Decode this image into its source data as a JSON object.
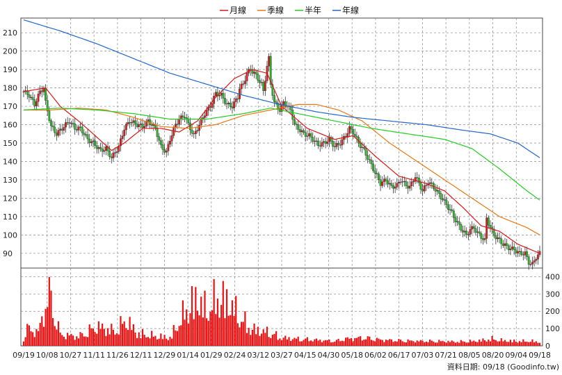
{
  "legend": [
    {
      "label": "月線",
      "color": "#d91616"
    },
    {
      "label": "季線",
      "color": "#ee7711"
    },
    {
      "label": "半年",
      "color": "#22cc22"
    },
    {
      "label": "年線",
      "color": "#2266cc"
    }
  ],
  "footer": {
    "text": "資料日期: 09/18  (Goodinfo.tw)"
  },
  "colors": {
    "up": "#dd1c1c",
    "down": "#22bb22",
    "volume": "#ee1111",
    "grid": "#888888"
  },
  "chart_data": [
    {
      "type": "candlestick",
      "name": "price",
      "ylim": [
        82,
        218
      ],
      "yticks": [
        90,
        100,
        110,
        120,
        130,
        140,
        150,
        160,
        170,
        180,
        190,
        200,
        210
      ],
      "x_labels": [
        "09/19",
        "10/08",
        "10/27",
        "11/11",
        "11/26",
        "12/11",
        "12/29",
        "01/14",
        "01/29",
        "02/24",
        "03/12",
        "03/27",
        "04/15",
        "04/30",
        "05/18",
        "06/02",
        "06/17",
        "07/03",
        "07/21",
        "08/05",
        "08/20",
        "09/04",
        "09/18"
      ],
      "grid": true,
      "close_points": [
        [
          0,
          178
        ],
        [
          3,
          176
        ],
        [
          6,
          171
        ],
        [
          9,
          178
        ],
        [
          11,
          180
        ],
        [
          12,
          172
        ],
        [
          15,
          159
        ],
        [
          18,
          155
        ],
        [
          21,
          158
        ],
        [
          25,
          162
        ],
        [
          28,
          158
        ],
        [
          31,
          158
        ],
        [
          35,
          152
        ],
        [
          38,
          150
        ],
        [
          42,
          146
        ],
        [
          45,
          147
        ],
        [
          48,
          142
        ],
        [
          52,
          148
        ],
        [
          55,
          158
        ],
        [
          58,
          162
        ],
        [
          62,
          160
        ],
        [
          65,
          159
        ],
        [
          68,
          162
        ],
        [
          70,
          160
        ],
        [
          72,
          158
        ],
        [
          75,
          148
        ],
        [
          78,
          145
        ],
        [
          80,
          152
        ],
        [
          83,
          160
        ],
        [
          85,
          163
        ],
        [
          88,
          165
        ],
        [
          90,
          160
        ],
        [
          93,
          154
        ],
        [
          96,
          160
        ],
        [
          99,
          166
        ],
        [
          102,
          170
        ],
        [
          105,
          177
        ],
        [
          108,
          176
        ],
        [
          111,
          171
        ],
        [
          114,
          170
        ],
        [
          117,
          175
        ],
        [
          118,
          180
        ],
        [
          120,
          182
        ],
        [
          122,
          188
        ],
        [
          124,
          190
        ],
        [
          126,
          188
        ],
        [
          128,
          185
        ],
        [
          130,
          182
        ],
        [
          131,
          178
        ],
        [
          133,
          192
        ],
        [
          134,
          196
        ],
        [
          135,
          182
        ],
        [
          137,
          172
        ],
        [
          140,
          168
        ],
        [
          142,
          172
        ],
        [
          144,
          170
        ],
        [
          146,
          168
        ],
        [
          148,
          160
        ],
        [
          150,
          158
        ],
        [
          153,
          155
        ],
        [
          156,
          154
        ],
        [
          158,
          152
        ],
        [
          161,
          149
        ],
        [
          164,
          150
        ],
        [
          167,
          152
        ],
        [
          170,
          148
        ],
        [
          173,
          150
        ],
        [
          176,
          154
        ],
        [
          178,
          158
        ],
        [
          180,
          156
        ],
        [
          183,
          150
        ],
        [
          186,
          146
        ],
        [
          189,
          140
        ],
        [
          192,
          134
        ],
        [
          195,
          128
        ],
        [
          198,
          130
        ],
        [
          201,
          126
        ],
        [
          204,
          127
        ],
        [
          206,
          130
        ],
        [
          209,
          127
        ],
        [
          211,
          126
        ],
        [
          214,
          132
        ],
        [
          216,
          128
        ],
        [
          218,
          124
        ],
        [
          221,
          129
        ],
        [
          224,
          126
        ],
        [
          227,
          122
        ],
        [
          230,
          118
        ],
        [
          232,
          115
        ],
        [
          234,
          112
        ],
        [
          236,
          108
        ],
        [
          238,
          105
        ],
        [
          240,
          102
        ],
        [
          242,
          100
        ],
        [
          244,
          103
        ],
        [
          246,
          104
        ],
        [
          248,
          101
        ],
        [
          250,
          99
        ],
        [
          252,
          97
        ],
        [
          253,
          109
        ],
        [
          255,
          104
        ],
        [
          257,
          100
        ],
        [
          259,
          98
        ],
        [
          262,
          95
        ],
        [
          265,
          93
        ],
        [
          268,
          92
        ],
        [
          271,
          90
        ],
        [
          274,
          90
        ],
        [
          276,
          85
        ],
        [
          278,
          84
        ],
        [
          280,
          88
        ],
        [
          282,
          90
        ]
      ],
      "series": [
        {
          "name": "月線",
          "points": [
            [
              0,
              178
            ],
            [
              12,
              180
            ],
            [
              20,
              170
            ],
            [
              30,
              162
            ],
            [
              38,
              155
            ],
            [
              48,
              146
            ],
            [
              55,
              150
            ],
            [
              65,
              158
            ],
            [
              75,
              158
            ],
            [
              85,
              156
            ],
            [
              95,
              162
            ],
            [
              105,
              175
            ],
            [
              115,
              185
            ],
            [
              125,
              190
            ],
            [
              133,
              188
            ],
            [
              141,
              170
            ],
            [
              155,
              158
            ],
            [
              170,
              152
            ],
            [
              180,
              154
            ],
            [
              192,
              143
            ],
            [
              205,
              132
            ],
            [
              220,
              128
            ],
            [
              230,
              124
            ],
            [
              240,
              115
            ],
            [
              250,
              105
            ],
            [
              260,
              102
            ],
            [
              270,
              95
            ],
            [
              282,
              90
            ]
          ]
        },
        {
          "name": "季線",
          "points": [
            [
              0,
              168
            ],
            [
              15,
              168
            ],
            [
              30,
              169
            ],
            [
              45,
              168
            ],
            [
              60,
              164
            ],
            [
              75,
              159
            ],
            [
              90,
              158
            ],
            [
              105,
              160
            ],
            [
              120,
              165
            ],
            [
              135,
              168
            ],
            [
              150,
              171
            ],
            [
              160,
              171
            ],
            [
              172,
              168
            ],
            [
              185,
              162
            ],
            [
              200,
              150
            ],
            [
              215,
              140
            ],
            [
              230,
              130
            ],
            [
              245,
              120
            ],
            [
              260,
              110
            ],
            [
              275,
              104
            ],
            [
              282,
              100
            ]
          ]
        },
        {
          "name": "半年",
          "points": [
            [
              0,
              168
            ],
            [
              20,
              169
            ],
            [
              40,
              168
            ],
            [
              60,
              166
            ],
            [
              80,
              163
            ],
            [
              100,
              163
            ],
            [
              120,
              166
            ],
            [
              135,
              169
            ],
            [
              150,
              166
            ],
            [
              170,
              162
            ],
            [
              190,
              158
            ],
            [
              210,
              155
            ],
            [
              230,
              152
            ],
            [
              245,
              147
            ],
            [
              260,
              136
            ],
            [
              275,
              124
            ],
            [
              282,
              119
            ]
          ]
        },
        {
          "name": "年線",
          "points": [
            [
              0,
              217
            ],
            [
              20,
              211
            ],
            [
              40,
              204
            ],
            [
              60,
              196
            ],
            [
              80,
              188
            ],
            [
              100,
              182
            ],
            [
              120,
              176
            ],
            [
              140,
              171
            ],
            [
              160,
              167
            ],
            [
              180,
              164
            ],
            [
              200,
              162
            ],
            [
              220,
              160
            ],
            [
              240,
              157
            ],
            [
              255,
              155
            ],
            [
              270,
              150
            ],
            [
              282,
              142
            ]
          ]
        }
      ]
    },
    {
      "type": "bar",
      "name": "volume",
      "ylim": [
        0,
        450
      ],
      "yticks": [
        0,
        100,
        200,
        300,
        400
      ],
      "grid": true,
      "peaks": [
        [
          0,
          50
        ],
        [
          2,
          140
        ],
        [
          8,
          110
        ],
        [
          14,
          450
        ],
        [
          20,
          90
        ],
        [
          30,
          70
        ],
        [
          40,
          160
        ],
        [
          50,
          120
        ],
        [
          56,
          220
        ],
        [
          62,
          100
        ],
        [
          70,
          80
        ],
        [
          80,
          60
        ],
        [
          90,
          340
        ],
        [
          95,
          410
        ],
        [
          100,
          300
        ],
        [
          106,
          420
        ],
        [
          112,
          380
        ],
        [
          118,
          250
        ],
        [
          124,
          140
        ],
        [
          130,
          120
        ],
        [
          136,
          100
        ],
        [
          140,
          60
        ],
        [
          150,
          50
        ],
        [
          160,
          40
        ],
        [
          170,
          30
        ],
        [
          176,
          50
        ],
        [
          186,
          60
        ],
        [
          196,
          40
        ],
        [
          206,
          35
        ],
        [
          216,
          30
        ],
        [
          226,
          30
        ],
        [
          236,
          25
        ],
        [
          246,
          30
        ],
        [
          252,
          40
        ],
        [
          256,
          50
        ],
        [
          262,
          35
        ],
        [
          270,
          30
        ],
        [
          278,
          30
        ],
        [
          282,
          20
        ]
      ]
    }
  ]
}
